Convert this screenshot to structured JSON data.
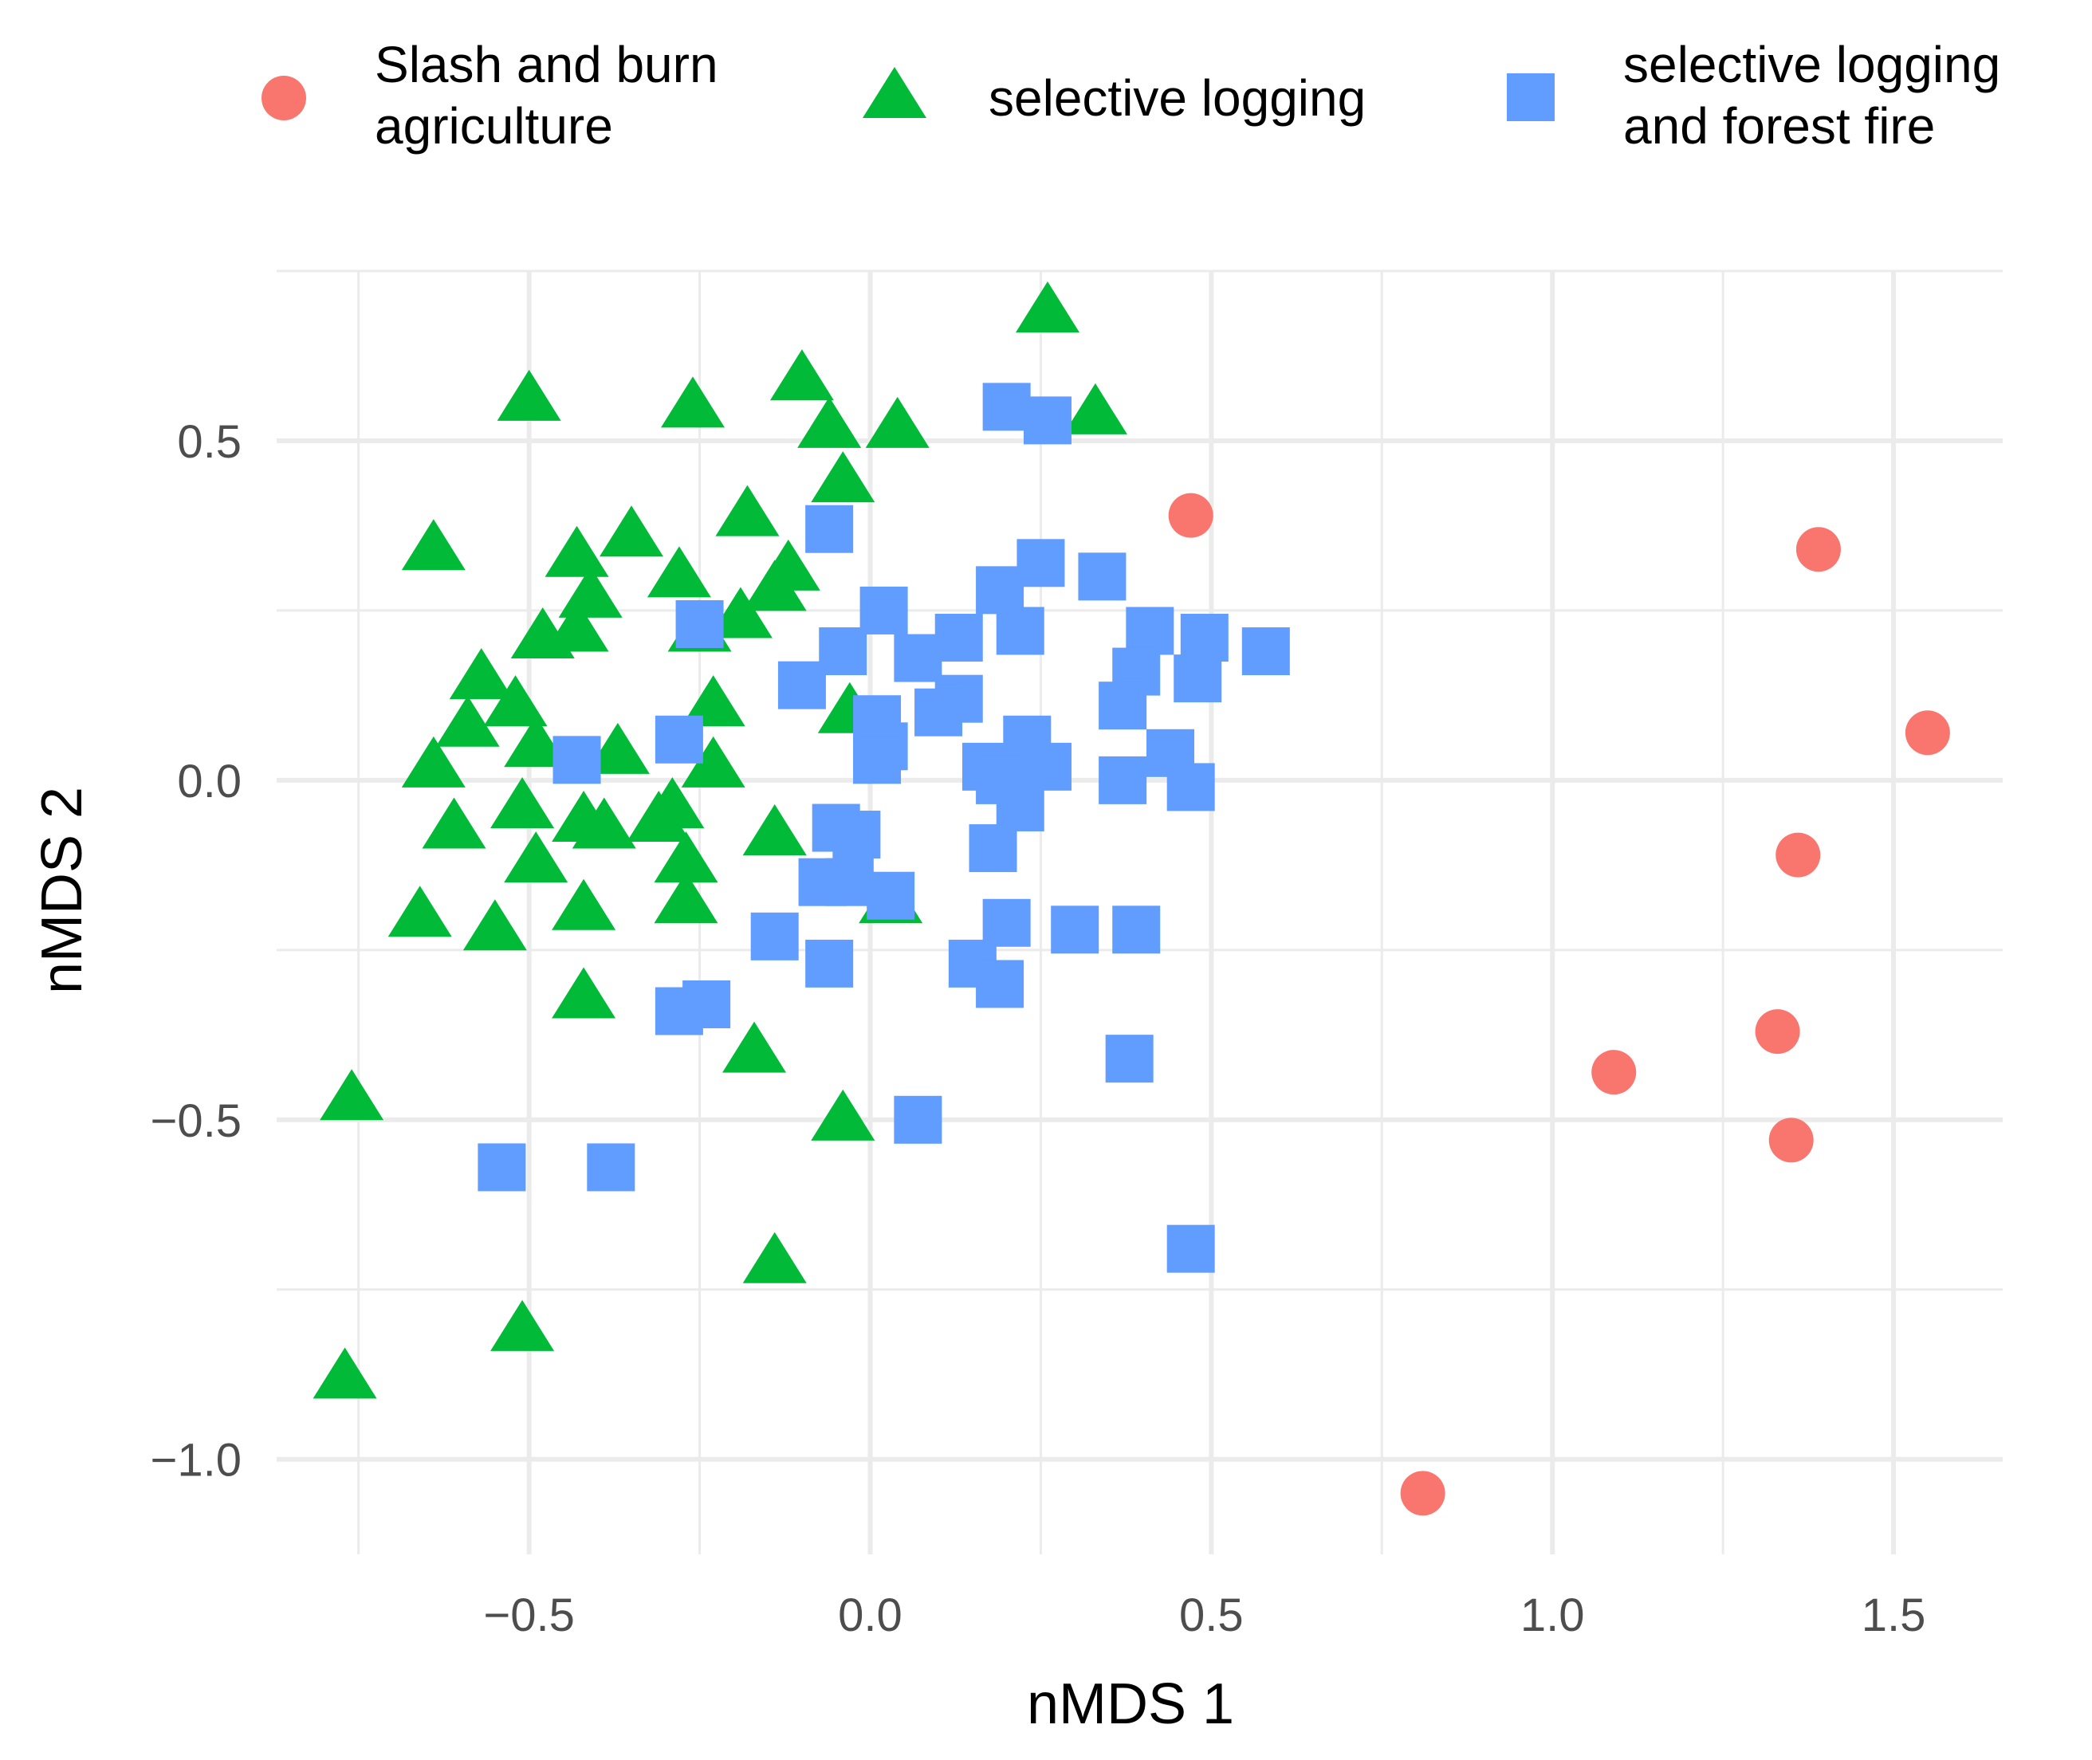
{
  "chart_data": {
    "type": "scatter",
    "title": "",
    "xlabel": "nMDS 1",
    "ylabel": "nMDS 2",
    "xlim": [
      -0.87,
      1.66
    ],
    "ylim": [
      -1.14,
      0.75
    ],
    "x_ticks": [
      -0.5,
      0.0,
      0.5,
      1.0,
      1.5
    ],
    "x_tick_labels": [
      "−0.5",
      "0.0",
      "0.5",
      "1.0",
      "1.5"
    ],
    "y_ticks": [
      -1.0,
      -0.5,
      0.0,
      0.5
    ],
    "y_tick_labels": [
      "−1.0",
      "−0.5",
      "0.0",
      "0.5"
    ],
    "grid": true,
    "legend_position": "top",
    "series": [
      {
        "name": "Slash and burn agriculture",
        "legend_lines": [
          "Slash and burn",
          " agriculture"
        ],
        "shape": "circle",
        "color": "#F8766D",
        "points": [
          [
            0.47,
            0.39
          ],
          [
            1.39,
            0.34
          ],
          [
            1.55,
            0.07
          ],
          [
            1.36,
            -0.11
          ],
          [
            1.33,
            -0.37
          ],
          [
            1.09,
            -0.43
          ],
          [
            1.35,
            -0.53
          ],
          [
            0.81,
            -1.05
          ]
        ]
      },
      {
        "name": "selective logging",
        "legend_lines": [
          "selective logging"
        ],
        "shape": "triangle",
        "color": "#00BA38",
        "points": [
          [
            0.26,
            0.69
          ],
          [
            -0.1,
            0.59
          ],
          [
            -0.5,
            0.56
          ],
          [
            -0.26,
            0.55
          ],
          [
            0.33,
            0.54
          ],
          [
            -0.06,
            0.52
          ],
          [
            0.04,
            0.52
          ],
          [
            -0.04,
            0.44
          ],
          [
            -0.18,
            0.39
          ],
          [
            -0.35,
            0.36
          ],
          [
            -0.64,
            0.34
          ],
          [
            -0.43,
            0.33
          ],
          [
            -0.28,
            0.3
          ],
          [
            -0.12,
            0.31
          ],
          [
            -0.14,
            0.28
          ],
          [
            -0.41,
            0.27
          ],
          [
            -0.43,
            0.22
          ],
          [
            -0.19,
            0.24
          ],
          [
            -0.25,
            0.22
          ],
          [
            -0.48,
            0.21
          ],
          [
            -0.57,
            0.15
          ],
          [
            -0.23,
            0.11
          ],
          [
            -0.03,
            0.1
          ],
          [
            -0.52,
            0.11
          ],
          [
            -0.59,
            0.08
          ],
          [
            -0.49,
            0.05
          ],
          [
            -0.37,
            0.04
          ],
          [
            -0.64,
            0.02
          ],
          [
            -0.23,
            0.02
          ],
          [
            -0.51,
            -0.04
          ],
          [
            -0.29,
            -0.04
          ],
          [
            -0.42,
            -0.06
          ],
          [
            -0.31,
            -0.06
          ],
          [
            -0.39,
            -0.07
          ],
          [
            -0.61,
            -0.07
          ],
          [
            -0.14,
            -0.08
          ],
          [
            -0.27,
            -0.12
          ],
          [
            -0.49,
            -0.12
          ],
          [
            -0.27,
            -0.18
          ],
          [
            0.03,
            -0.18
          ],
          [
            -0.66,
            -0.2
          ],
          [
            -0.42,
            -0.19
          ],
          [
            -0.55,
            -0.22
          ],
          [
            -0.42,
            -0.32
          ],
          [
            -0.17,
            -0.4
          ],
          [
            -0.76,
            -0.47
          ],
          [
            -0.04,
            -0.5
          ],
          [
            -0.14,
            -0.71
          ],
          [
            -0.51,
            -0.81
          ],
          [
            -0.77,
            -0.88
          ]
        ]
      },
      {
        "name": "selective logging and forest fire",
        "legend_lines": [
          "selective logging",
          " and  forest fire"
        ],
        "shape": "square",
        "color": "#619CFF",
        "points": [
          [
            0.2,
            0.55
          ],
          [
            0.26,
            0.53
          ],
          [
            -0.06,
            0.37
          ],
          [
            0.25,
            0.32
          ],
          [
            0.34,
            0.3
          ],
          [
            0.19,
            0.28
          ],
          [
            0.02,
            0.25
          ],
          [
            -0.25,
            0.23
          ],
          [
            0.22,
            0.22
          ],
          [
            0.41,
            0.22
          ],
          [
            0.49,
            0.21
          ],
          [
            0.13,
            0.21
          ],
          [
            -0.04,
            0.19
          ],
          [
            0.58,
            0.19
          ],
          [
            0.07,
            0.18
          ],
          [
            0.39,
            0.16
          ],
          [
            0.48,
            0.15
          ],
          [
            -0.1,
            0.14
          ],
          [
            0.13,
            0.12
          ],
          [
            0.37,
            0.11
          ],
          [
            0.1,
            0.1
          ],
          [
            0.01,
            0.09
          ],
          [
            -0.28,
            0.06
          ],
          [
            0.23,
            0.06
          ],
          [
            0.02,
            0.05
          ],
          [
            0.44,
            0.04
          ],
          [
            -0.43,
            0.03
          ],
          [
            0.17,
            0.02
          ],
          [
            0.26,
            0.02
          ],
          [
            0.01,
            0.03
          ],
          [
            0.19,
            0.0
          ],
          [
            0.37,
            0.0
          ],
          [
            0.47,
            -0.01
          ],
          [
            0.22,
            -0.04
          ],
          [
            -0.05,
            -0.07
          ],
          [
            -0.02,
            -0.08
          ],
          [
            0.18,
            -0.1
          ],
          [
            -0.07,
            -0.15
          ],
          [
            -0.03,
            -0.15
          ],
          [
            0.03,
            -0.17
          ],
          [
            0.2,
            -0.21
          ],
          [
            0.3,
            -0.22
          ],
          [
            0.39,
            -0.22
          ],
          [
            -0.14,
            -0.23
          ],
          [
            0.15,
            -0.27
          ],
          [
            -0.06,
            -0.27
          ],
          [
            0.19,
            -0.3
          ],
          [
            -0.24,
            -0.33
          ],
          [
            -0.28,
            -0.34
          ],
          [
            0.38,
            -0.41
          ],
          [
            0.07,
            -0.5
          ],
          [
            -0.54,
            -0.57
          ],
          [
            -0.38,
            -0.57
          ],
          [
            0.47,
            -0.69
          ]
        ]
      }
    ]
  }
}
